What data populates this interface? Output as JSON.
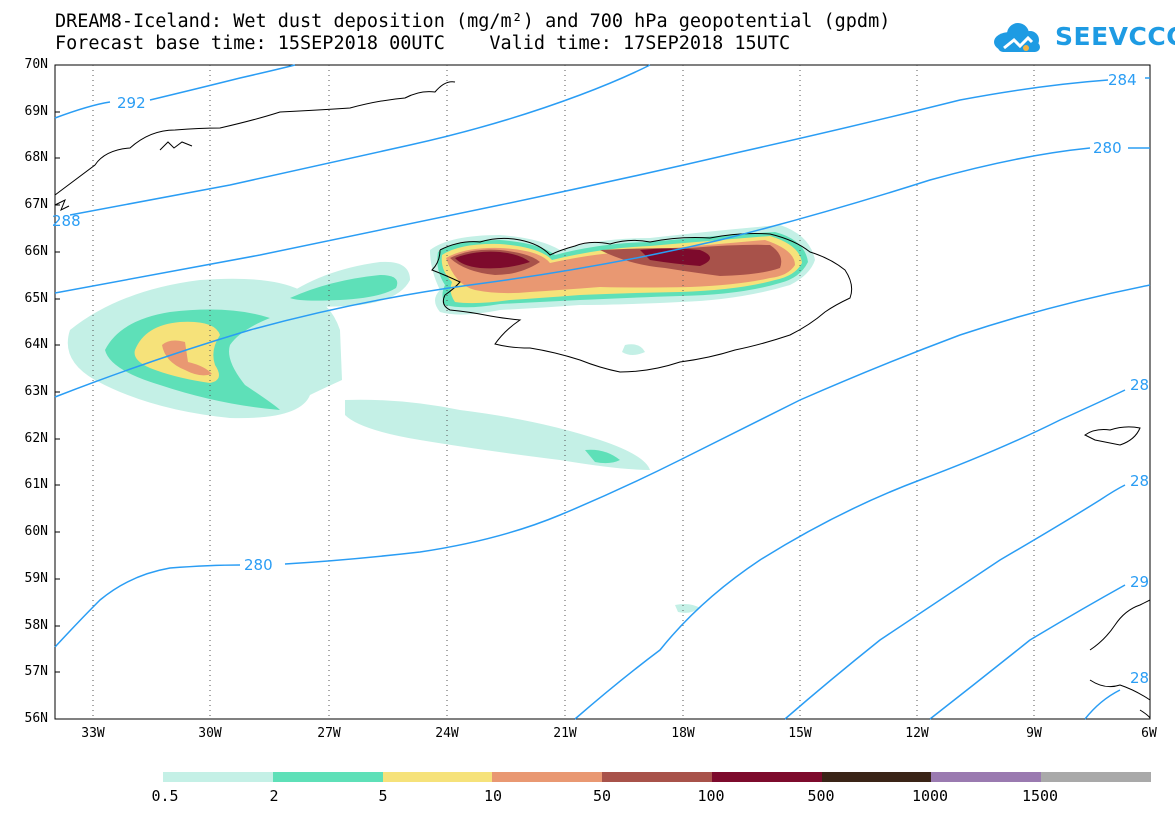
{
  "title": {
    "line1": "DREAM8-Iceland: Wet dust deposition (mg/m²) and 700 hPa geopotential (gpdm)",
    "line2": "Forecast base time: 15SEP2018 00UTC    Valid time: 17SEP2018 15UTC"
  },
  "logo": {
    "text": "SEEVCCC"
  },
  "map": {
    "lat_labels": [
      "70N",
      "69N",
      "68N",
      "67N",
      "66N",
      "65N",
      "64N",
      "63N",
      "62N",
      "61N",
      "60N",
      "59N",
      "58N",
      "57N",
      "56N"
    ],
    "lon_labels": [
      "33W",
      "30W",
      "27W",
      "24W",
      "21W",
      "18W",
      "15W",
      "12W",
      "9W",
      "6W"
    ],
    "contour_labels": [
      "292",
      "288",
      "284",
      "280",
      "280",
      "280",
      "28",
      "28",
      "28",
      "29",
      "29"
    ],
    "contour_color": "#2a9df4",
    "coastline_color": "#000000"
  },
  "legend": {
    "labels": [
      "0.5",
      "2",
      "5",
      "10",
      "50",
      "100",
      "500",
      "1000",
      "1500"
    ],
    "colors": [
      "#c4f0e6",
      "#5ee0b8",
      "#f6e27a",
      "#e99872",
      "#a8524a",
      "#7d0a2c",
      "#3a2417",
      "#9a7ab0",
      "#a9a9a9"
    ]
  }
}
